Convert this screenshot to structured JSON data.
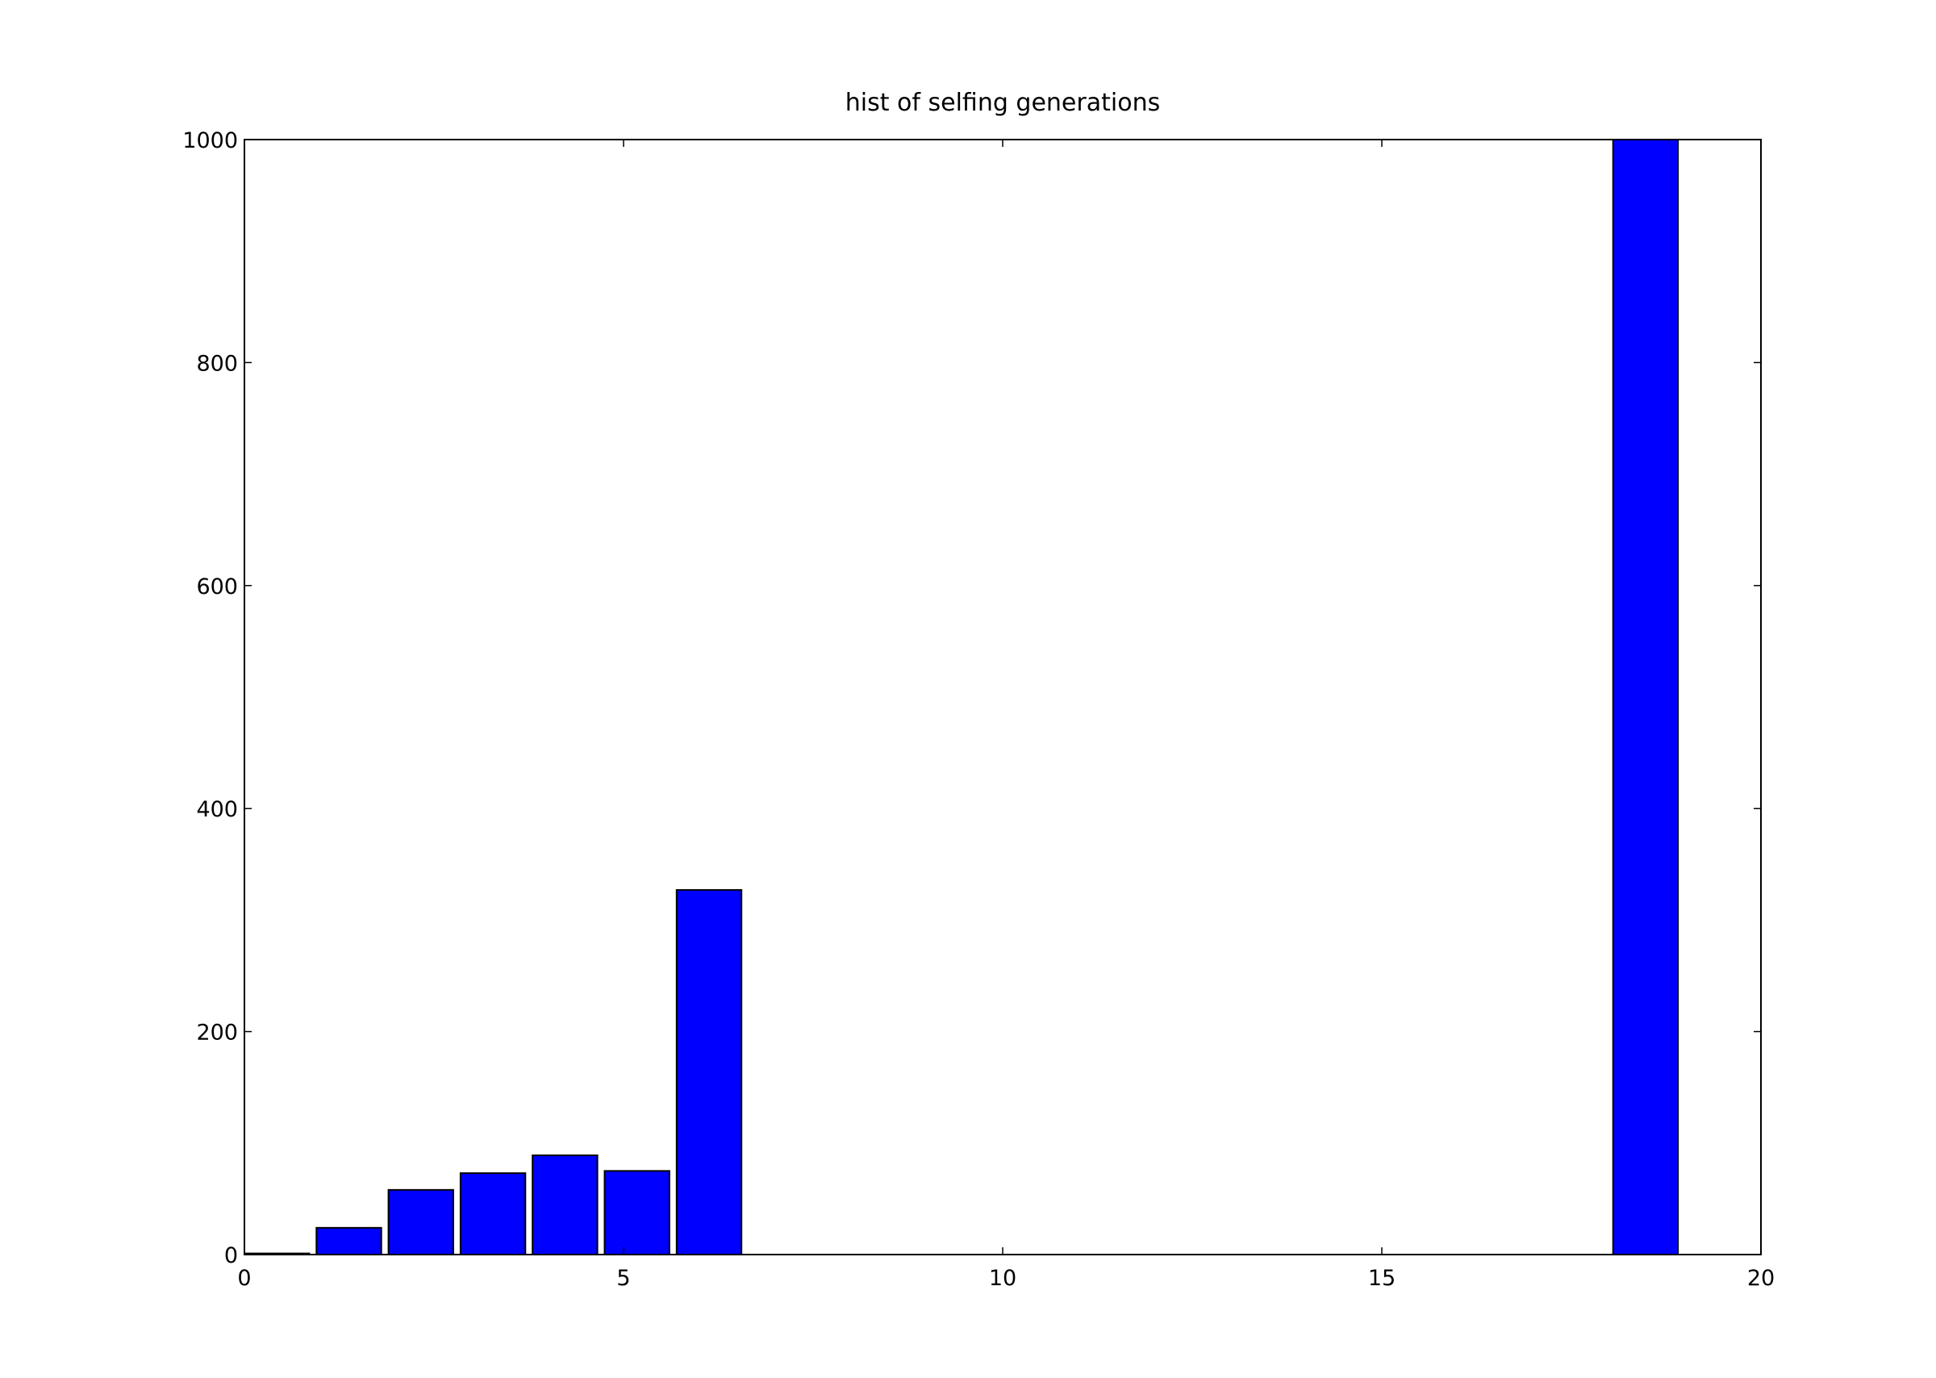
{
  "chart_data": {
    "type": "bar",
    "title": "hist of selfing generations",
    "xlabel": "",
    "ylabel": "",
    "xlim": [
      0,
      20
    ],
    "ylim": [
      0,
      1000
    ],
    "x_ticks": [
      0,
      5,
      10,
      15,
      20
    ],
    "y_ticks": [
      0,
      200,
      400,
      600,
      800,
      1000
    ],
    "x_tick_labels": [
      "0",
      "5",
      "10",
      "15",
      "20"
    ],
    "y_tick_labels": [
      "0",
      "200",
      "400",
      "600",
      "800",
      "1000"
    ],
    "grid": false,
    "bar_color": "#0000ff",
    "edge_color": "#000000",
    "bins": [
      {
        "start": 0.0,
        "end": 0.855,
        "value": 1
      },
      {
        "start": 0.95,
        "end": 1.805,
        "value": 24
      },
      {
        "start": 1.9,
        "end": 2.755,
        "value": 58
      },
      {
        "start": 2.85,
        "end": 3.705,
        "value": 73
      },
      {
        "start": 3.8,
        "end": 4.655,
        "value": 89
      },
      {
        "start": 4.75,
        "end": 5.605,
        "value": 75
      },
      {
        "start": 5.7,
        "end": 6.555,
        "value": 327
      },
      {
        "start": 18.05,
        "end": 18.905,
        "value": 1000
      }
    ]
  }
}
